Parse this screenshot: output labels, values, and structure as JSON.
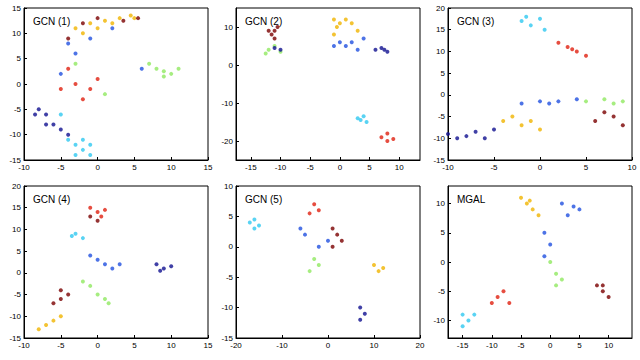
{
  "chart_data": [
    {
      "type": "scatter",
      "title": "GCN (1)",
      "grid": false,
      "xlim": [
        -10,
        15
      ],
      "ylim": [
        -15,
        15
      ],
      "xticks": [
        -10,
        -5,
        0,
        5,
        10,
        15
      ],
      "yticks": [
        -15,
        -10,
        -5,
        0,
        5,
        10,
        15
      ],
      "series": [
        {
          "color": "#f0b400",
          "values": [
            [
              -3,
              11
            ],
            [
              -1,
              12
            ],
            [
              1,
              12.5
            ],
            [
              3,
              13
            ],
            [
              4.5,
              13.5
            ],
            [
              0,
              11
            ],
            [
              -2,
              10
            ],
            [
              2,
              12
            ],
            [
              5,
              13
            ]
          ]
        },
        {
          "color": "#7a0000",
          "values": [
            [
              -2,
              12
            ],
            [
              0,
              13
            ],
            [
              3.5,
              12.5
            ],
            [
              5.5,
              13
            ],
            [
              -4,
              9
            ]
          ]
        },
        {
          "color": "#2050e0",
          "values": [
            [
              -4,
              8
            ],
            [
              -3,
              6
            ],
            [
              -1,
              9
            ],
            [
              2,
              11
            ],
            [
              -5,
              2
            ],
            [
              6,
              3
            ]
          ]
        },
        {
          "color": "#e02010",
          "values": [
            [
              -4,
              3
            ],
            [
              -3,
              0
            ],
            [
              -1,
              -1
            ],
            [
              0,
              1
            ],
            [
              -2,
              -3
            ],
            [
              -5,
              -1
            ]
          ]
        },
        {
          "color": "#90e860",
          "values": [
            [
              7,
              4
            ],
            [
              8,
              3
            ],
            [
              9,
              2.5
            ],
            [
              10,
              2
            ],
            [
              11,
              3
            ],
            [
              9,
              1.5
            ],
            [
              -3,
              4
            ],
            [
              1,
              -2
            ]
          ]
        },
        {
          "color": "#101090",
          "values": [
            [
              -8,
              -5
            ],
            [
              -7,
              -6
            ],
            [
              -6,
              -8
            ],
            [
              -5,
              -9
            ],
            [
              -7,
              -8
            ],
            [
              -4,
              -10
            ],
            [
              -8.5,
              -6
            ]
          ]
        },
        {
          "color": "#30c8f0",
          "values": [
            [
              -4,
              -11
            ],
            [
              -3,
              -12
            ],
            [
              -2,
              -13
            ],
            [
              -1,
              -12
            ],
            [
              -3,
              -14
            ],
            [
              -2,
              -11
            ],
            [
              -1,
              -14
            ],
            [
              -5,
              -6
            ]
          ]
        }
      ]
    },
    {
      "type": "scatter",
      "title": "GCN (2)",
      "grid": false,
      "xlim": [
        -17.5,
        13.5
      ],
      "ylim": [
        -25,
        15
      ],
      "xticks": [
        -15,
        -10,
        -5,
        0,
        5,
        10
      ],
      "yticks": [
        -20,
        -10,
        0,
        10
      ],
      "series": [
        {
          "color": "#7a0000",
          "values": [
            [
              -11,
              9
            ],
            [
              -11.5,
              8
            ],
            [
              -10.5,
              10
            ],
            [
              -11,
              7
            ],
            [
              -12,
              9
            ]
          ]
        },
        {
          "color": "#90e860",
          "values": [
            [
              -12,
              4
            ],
            [
              -11,
              5
            ],
            [
              -10,
              3.5
            ],
            [
              -12.5,
              3
            ]
          ]
        },
        {
          "color": "#101090",
          "values": [
            [
              -10,
              4
            ],
            [
              -11,
              4.5
            ],
            [
              6,
              4
            ],
            [
              7,
              4.5
            ],
            [
              8,
              3.5
            ],
            [
              7.5,
              4
            ]
          ]
        },
        {
          "color": "#f0b400",
          "values": [
            [
              -1,
              12
            ],
            [
              0,
              11
            ],
            [
              1,
              12
            ],
            [
              -0.5,
              10
            ],
            [
              2,
              11
            ],
            [
              3,
              9
            ],
            [
              -1,
              8
            ]
          ]
        },
        {
          "color": "#2050e0",
          "values": [
            [
              0,
              6
            ],
            [
              1,
              5
            ],
            [
              2,
              6
            ],
            [
              3,
              4
            ],
            [
              -1,
              5
            ],
            [
              4,
              7
            ]
          ]
        },
        {
          "color": "#30c8f0",
          "values": [
            [
              3,
              -14
            ],
            [
              4,
              -13.5
            ],
            [
              4.5,
              -15
            ],
            [
              3.5,
              -14.5
            ]
          ]
        },
        {
          "color": "#e02010",
          "values": [
            [
              7,
              -19
            ],
            [
              8,
              -18
            ],
            [
              9,
              -19.5
            ],
            [
              8,
              -20
            ]
          ]
        }
      ]
    },
    {
      "type": "scatter",
      "title": "GCN (3)",
      "grid": false,
      "xlim": [
        -10,
        10
      ],
      "ylim": [
        -15,
        20
      ],
      "xticks": [
        -10,
        -5,
        0,
        5,
        10
      ],
      "yticks": [
        -15,
        -10,
        -5,
        0,
        5,
        10,
        15,
        20
      ],
      "series": [
        {
          "color": "#30c8f0",
          "values": [
            [
              -2,
              17
            ],
            [
              -1,
              16
            ],
            [
              0,
              17.5
            ],
            [
              -1.5,
              18
            ],
            [
              0.5,
              15
            ]
          ]
        },
        {
          "color": "#e02010",
          "values": [
            [
              2,
              12
            ],
            [
              3,
              11
            ],
            [
              4,
              10
            ],
            [
              5,
              9
            ],
            [
              3.5,
              10.5
            ]
          ]
        },
        {
          "color": "#101090",
          "values": [
            [
              -10,
              -9
            ],
            [
              -8,
              -9.5
            ],
            [
              -6,
              -10
            ],
            [
              -5,
              -8
            ],
            [
              -7,
              -8.5
            ],
            [
              -9,
              -10
            ]
          ]
        },
        {
          "color": "#2050e0",
          "values": [
            [
              -2,
              -2
            ],
            [
              0,
              -1.5
            ],
            [
              2,
              -1.5
            ],
            [
              4,
              -1
            ],
            [
              1,
              -2
            ]
          ]
        },
        {
          "color": "#90e860",
          "values": [
            [
              5,
              -1.5
            ],
            [
              7,
              -1
            ],
            [
              9,
              -1.5
            ],
            [
              8,
              -2
            ]
          ]
        },
        {
          "color": "#f0b400",
          "values": [
            [
              -3,
              -5
            ],
            [
              -2,
              -7
            ],
            [
              0,
              -8
            ],
            [
              -1,
              -6
            ],
            [
              -4,
              -6
            ]
          ]
        },
        {
          "color": "#7a0000",
          "values": [
            [
              6,
              -6
            ],
            [
              8,
              -5
            ],
            [
              9,
              -7
            ],
            [
              7,
              -4
            ]
          ]
        }
      ]
    },
    {
      "type": "scatter",
      "title": "GCN (4)",
      "grid": false,
      "xlim": [
        -10,
        15
      ],
      "ylim": [
        -15,
        20
      ],
      "xticks": [
        -10,
        -5,
        0,
        5,
        10,
        15
      ],
      "yticks": [
        -15,
        -10,
        -5,
        0,
        5,
        10,
        15,
        20
      ],
      "series": [
        {
          "color": "#e02010",
          "values": [
            [
              0,
              14
            ],
            [
              -1,
              15
            ],
            [
              0.5,
              13
            ],
            [
              1,
              14.5
            ]
          ]
        },
        {
          "color": "#7a0000",
          "values": [
            [
              -1,
              13
            ],
            [
              0,
              12
            ],
            [
              -5,
              -6
            ],
            [
              -4,
              -5
            ],
            [
              -6,
              -7
            ],
            [
              -5,
              -4
            ]
          ]
        },
        {
          "color": "#30c8f0",
          "values": [
            [
              -3,
              9
            ],
            [
              -2,
              8
            ],
            [
              -3.5,
              8.5
            ]
          ]
        },
        {
          "color": "#2050e0",
          "values": [
            [
              0,
              3
            ],
            [
              1,
              2
            ],
            [
              2,
              1
            ],
            [
              -1,
              4
            ],
            [
              3,
              2
            ]
          ]
        },
        {
          "color": "#101090",
          "values": [
            [
              8,
              2
            ],
            [
              9,
              1
            ],
            [
              10,
              1.5
            ],
            [
              8.5,
              0.5
            ]
          ]
        },
        {
          "color": "#90e860",
          "values": [
            [
              -2,
              -2
            ],
            [
              0,
              -5
            ],
            [
              1,
              -6
            ],
            [
              -1,
              -3
            ],
            [
              1.5,
              -7
            ]
          ]
        },
        {
          "color": "#f0b400",
          "values": [
            [
              -7,
              -12
            ],
            [
              -6,
              -11
            ],
            [
              -8,
              -13
            ],
            [
              -5,
              -10
            ]
          ]
        }
      ]
    },
    {
      "type": "scatter",
      "title": "GCN (5)",
      "grid": false,
      "xlim": [
        -20,
        20
      ],
      "ylim": [
        -15,
        10
      ],
      "xticks": [
        -20,
        -10,
        0,
        10,
        20
      ],
      "yticks": [
        -15,
        -10,
        -5,
        0,
        5,
        10
      ],
      "series": [
        {
          "color": "#30c8f0",
          "values": [
            [
              -17,
              4
            ],
            [
              -16,
              4.5
            ],
            [
              -15,
              3.5
            ],
            [
              -16,
              3
            ]
          ]
        },
        {
          "color": "#e02010",
          "values": [
            [
              -3,
              7
            ],
            [
              -2,
              6
            ],
            [
              -4,
              5.5
            ]
          ]
        },
        {
          "color": "#2050e0",
          "values": [
            [
              -6,
              3
            ],
            [
              -5,
              2
            ],
            [
              -2,
              0
            ],
            [
              0,
              1
            ]
          ]
        },
        {
          "color": "#7a0000",
          "values": [
            [
              1,
              3
            ],
            [
              2,
              2
            ],
            [
              3,
              1
            ],
            [
              1,
              0
            ]
          ]
        },
        {
          "color": "#90e860",
          "values": [
            [
              -3,
              -2
            ],
            [
              -2,
              -3
            ],
            [
              -4,
              -4
            ]
          ]
        },
        {
          "color": "#f0b400",
          "values": [
            [
              10,
              -3
            ],
            [
              11,
              -4
            ],
            [
              12,
              -3.5
            ]
          ]
        },
        {
          "color": "#101090",
          "values": [
            [
              7,
              -10
            ],
            [
              8,
              -11
            ],
            [
              7,
              -12
            ]
          ]
        }
      ]
    },
    {
      "type": "scatter",
      "title": "MGAL",
      "grid": false,
      "xlim": [
        -17.5,
        14
      ],
      "ylim": [
        -13,
        13
      ],
      "xticks": [
        -15,
        -10,
        -5,
        0,
        5,
        10
      ],
      "yticks": [
        -10,
        -5,
        0,
        5,
        10
      ],
      "series": [
        {
          "color": "#f0b400",
          "values": [
            [
              -4,
              10
            ],
            [
              -3,
              9
            ],
            [
              -2,
              8
            ],
            [
              -5,
              11
            ],
            [
              -3.5,
              10.5
            ]
          ]
        },
        {
          "color": "#2050e0",
          "values": [
            [
              2,
              10
            ],
            [
              4,
              9.5
            ],
            [
              3,
              8
            ],
            [
              5,
              9
            ],
            [
              -1,
              5
            ],
            [
              0,
              3
            ],
            [
              -1,
              1
            ]
          ]
        },
        {
          "color": "#90e860",
          "values": [
            [
              0,
              0
            ],
            [
              1,
              -2
            ],
            [
              2,
              -3
            ],
            [
              1,
              -4
            ]
          ]
        },
        {
          "color": "#e02010",
          "values": [
            [
              -10,
              -7
            ],
            [
              -9,
              -6
            ],
            [
              -8,
              -5
            ],
            [
              -7,
              -7
            ]
          ]
        },
        {
          "color": "#30c8f0",
          "values": [
            [
              -15,
              -9
            ],
            [
              -14,
              -10
            ],
            [
              -13,
              -9
            ],
            [
              -15,
              -11
            ]
          ]
        },
        {
          "color": "#7a0000",
          "values": [
            [
              8,
              -4
            ],
            [
              9,
              -5
            ],
            [
              10,
              -6
            ],
            [
              9,
              -4
            ]
          ]
        }
      ]
    }
  ]
}
